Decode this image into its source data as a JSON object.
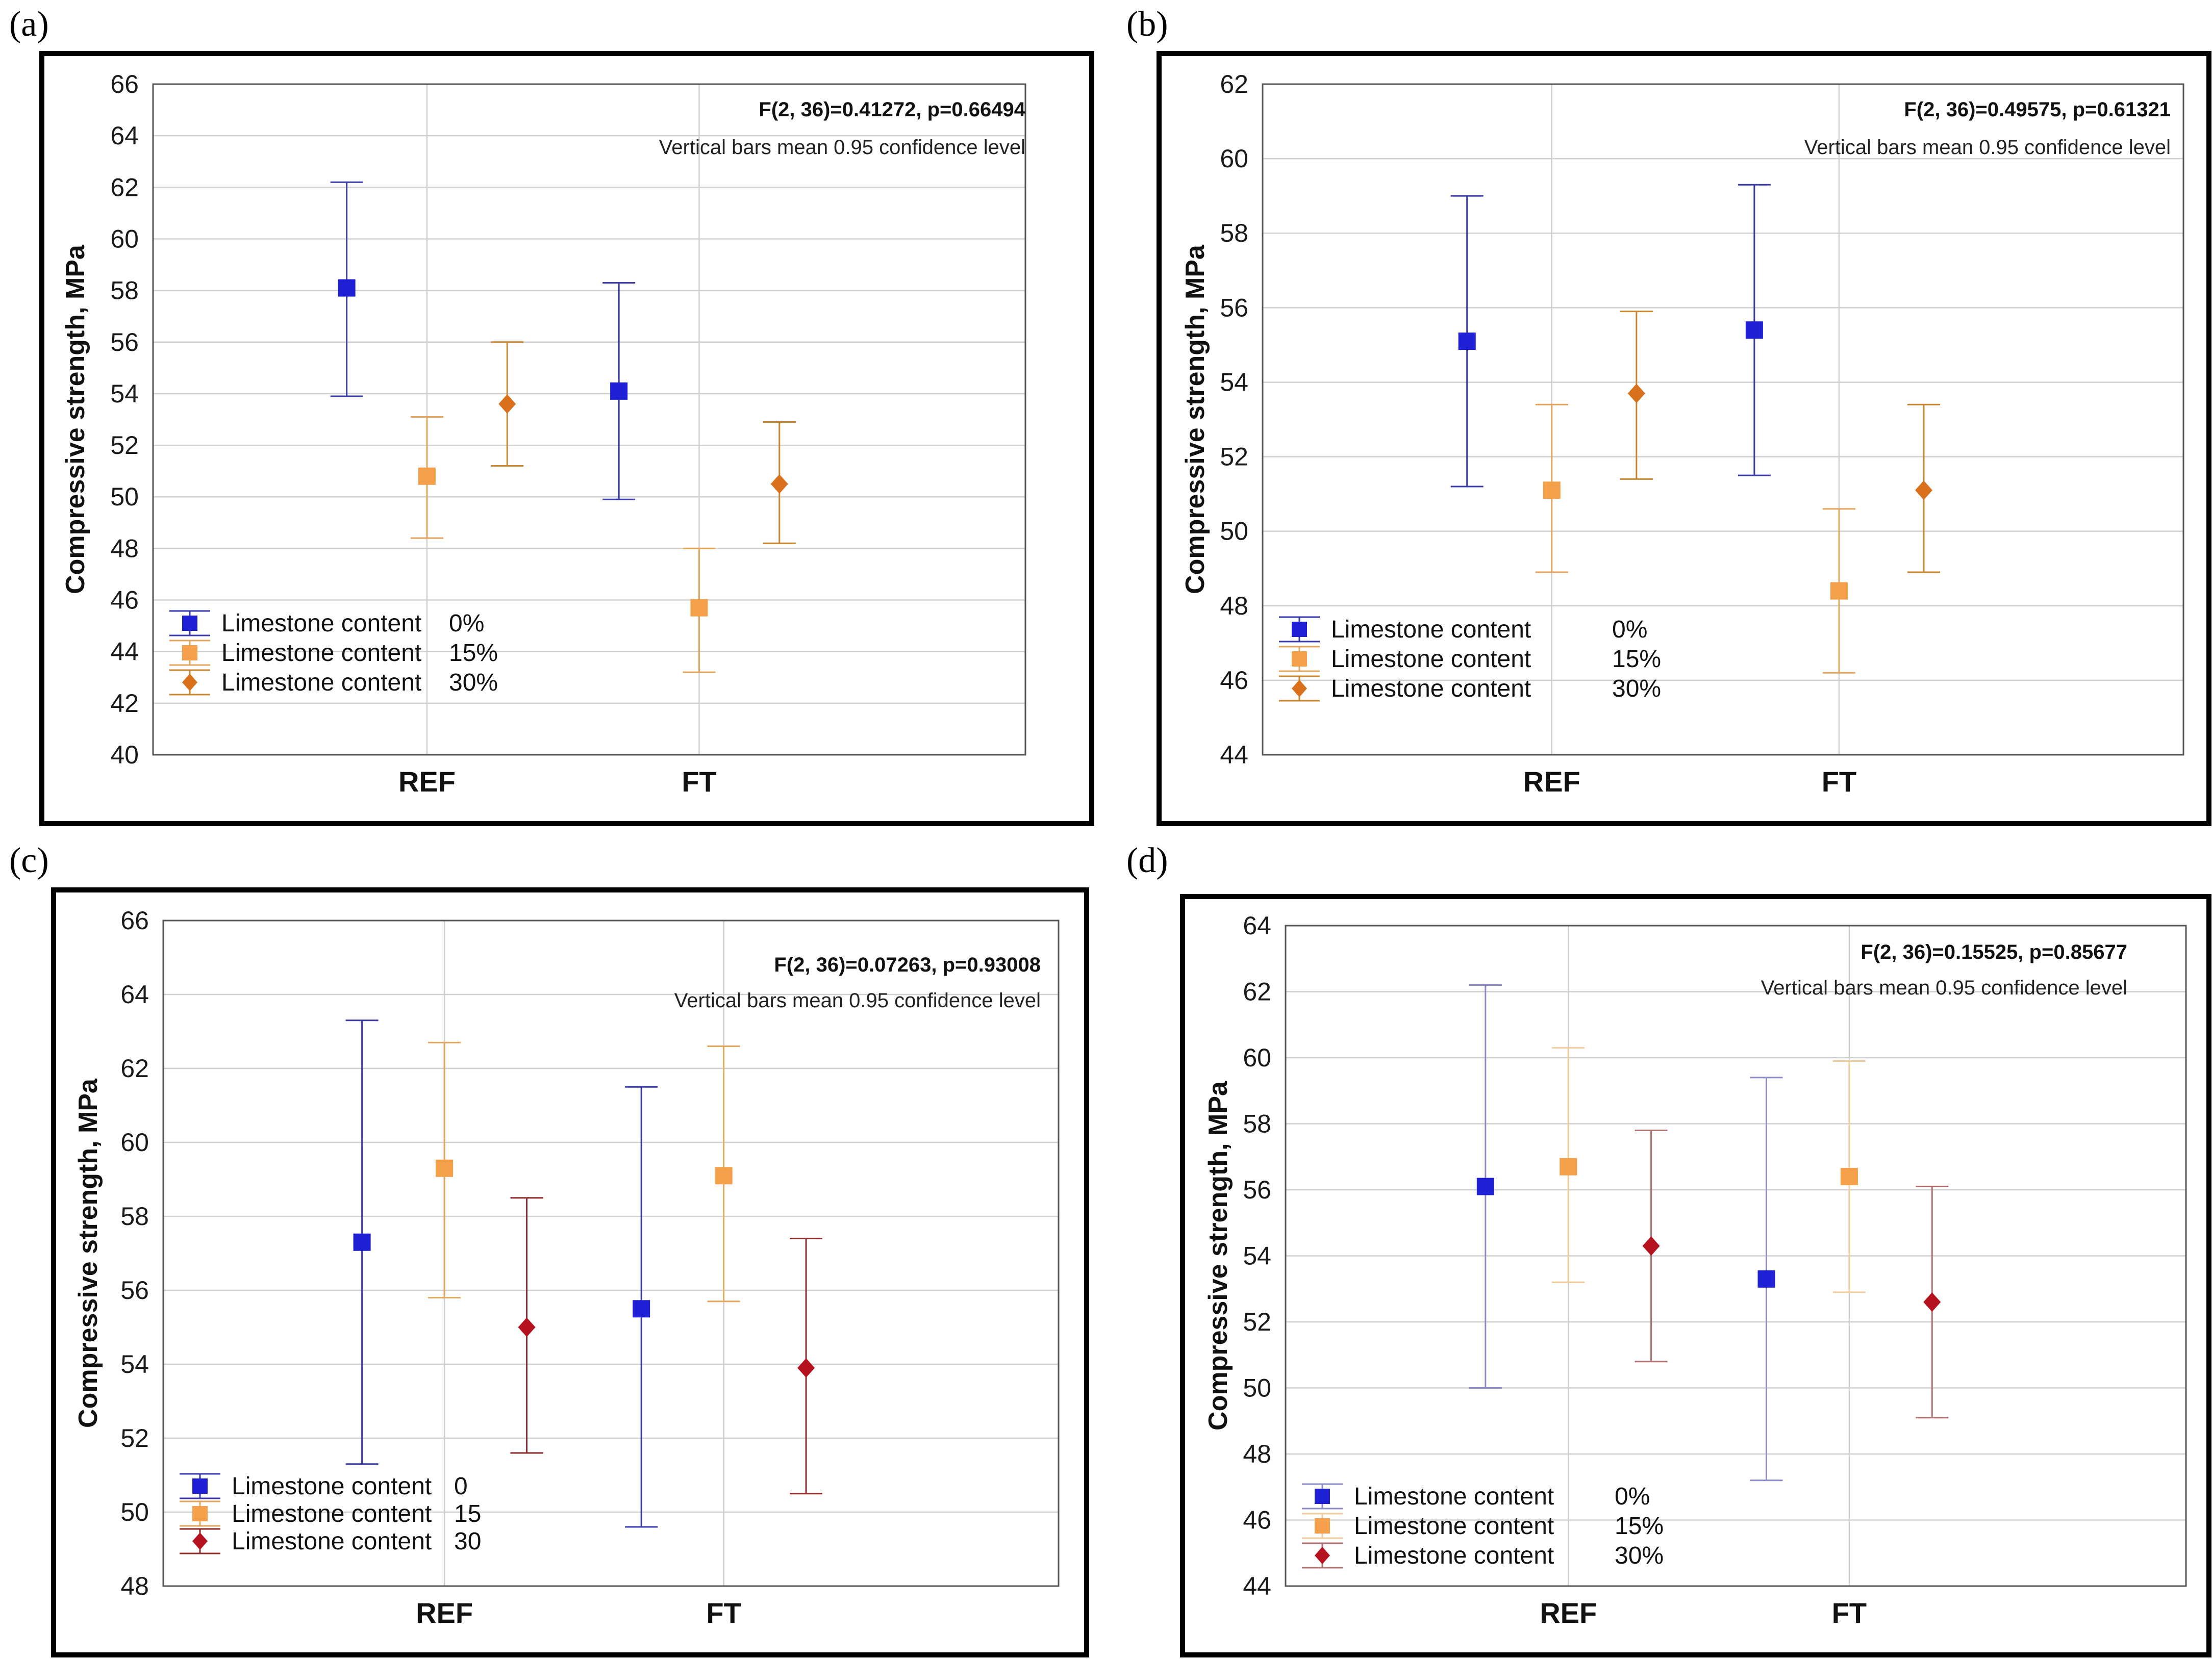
{
  "chart_data": [
    {
      "panel": "a",
      "type": "errorbar",
      "ylabel": "Compressive strength, MPa",
      "categories": [
        "REF",
        "FT"
      ],
      "ylim": [
        40,
        66
      ],
      "yticks": [
        40,
        42,
        44,
        46,
        48,
        50,
        52,
        54,
        56,
        58,
        60,
        62,
        64,
        66
      ],
      "annotation_stat": "F(2, 36)=0.41272, p=0.66494",
      "annotation_note": "Vertical bars mean 0.95 confidence level",
      "series": [
        {
          "name": "Limestone content",
          "level": "0%",
          "color": "#1f1fd6",
          "bar_color": "#3a3aa8",
          "marker": "square",
          "means": [
            58.1,
            54.1
          ],
          "lower": [
            53.9,
            49.9
          ],
          "upper": [
            62.2,
            58.3
          ]
        },
        {
          "name": "Limestone content",
          "level": "15%",
          "color": "#f4a04a",
          "bar_color": "#e3a55e",
          "marker": "square",
          "means": [
            50.8,
            45.7
          ],
          "lower": [
            48.4,
            43.2
          ],
          "upper": [
            53.1,
            48.0
          ]
        },
        {
          "name": "Limestone content",
          "level": "30%",
          "color": "#d9701c",
          "bar_color": "#c98530",
          "marker": "diamond",
          "means": [
            53.6,
            50.5
          ],
          "lower": [
            51.2,
            48.2
          ],
          "upper": [
            56.0,
            52.9
          ]
        }
      ]
    },
    {
      "panel": "b",
      "type": "errorbar",
      "ylabel": "Compressive strength, MPa",
      "categories": [
        "REF",
        "FT"
      ],
      "ylim": [
        44,
        62
      ],
      "yticks": [
        44,
        46,
        48,
        50,
        52,
        54,
        56,
        58,
        60,
        62
      ],
      "annotation_stat": "F(2, 36)=0.49575, p=0.61321",
      "annotation_note": "Vertical bars mean 0.95 confidence level",
      "series": [
        {
          "name": "Limestone content",
          "level": "0%",
          "color": "#1f1fd6",
          "bar_color": "#3a3aa8",
          "marker": "square",
          "means": [
            55.1,
            55.4
          ],
          "lower": [
            51.2,
            51.5
          ],
          "upper": [
            59.0,
            59.3
          ]
        },
        {
          "name": "Limestone content",
          "level": "15%",
          "color": "#f4a04a",
          "bar_color": "#e3a55e",
          "marker": "square",
          "means": [
            51.1,
            48.4
          ],
          "lower": [
            48.9,
            46.2
          ],
          "upper": [
            53.4,
            50.6
          ]
        },
        {
          "name": "Limestone content",
          "level": "30%",
          "color": "#d9701c",
          "bar_color": "#c98530",
          "marker": "diamond",
          "means": [
            53.7,
            51.1
          ],
          "lower": [
            51.4,
            48.9
          ],
          "upper": [
            55.9,
            53.4
          ]
        }
      ]
    },
    {
      "panel": "c",
      "type": "errorbar",
      "ylabel": "Compressive strength, MPa",
      "categories": [
        "REF",
        "FT"
      ],
      "ylim": [
        48,
        66
      ],
      "yticks": [
        48,
        50,
        52,
        54,
        56,
        58,
        60,
        62,
        64,
        66
      ],
      "annotation_stat": "F(2, 36)=0.07263, p=0.93008",
      "annotation_note": "Vertical bars mean 0.95 confidence level",
      "series": [
        {
          "name": "Limestone content",
          "level": "0",
          "color": "#1f1fd6",
          "bar_color": "#3a3aa8",
          "marker": "square",
          "means": [
            57.3,
            55.5
          ],
          "lower": [
            51.3,
            49.6
          ],
          "upper": [
            63.3,
            61.5
          ]
        },
        {
          "name": "Limestone content",
          "level": "15",
          "color": "#f4a04a",
          "bar_color": "#e3a55e",
          "marker": "square",
          "means": [
            59.3,
            59.1
          ],
          "lower": [
            55.8,
            55.7
          ],
          "upper": [
            62.7,
            62.6
          ]
        },
        {
          "name": "Limestone content",
          "level": "30",
          "color": "#b3121e",
          "bar_color": "#8c2a2a",
          "marker": "diamond",
          "means": [
            55.0,
            53.9
          ],
          "lower": [
            51.6,
            50.5
          ],
          "upper": [
            58.5,
            57.4
          ]
        }
      ]
    },
    {
      "panel": "d",
      "type": "errorbar",
      "ylabel": "Compressive strength, MPa",
      "categories": [
        "REF",
        "FT"
      ],
      "ylim": [
        44,
        64
      ],
      "yticks": [
        44,
        46,
        48,
        50,
        52,
        54,
        56,
        58,
        60,
        62,
        64
      ],
      "annotation_stat": "F(2, 36)=0.15525, p=0.85677",
      "annotation_note": "Vertical bars mean 0.95 confidence level",
      "series": [
        {
          "name": "Limestone content",
          "level": "0%",
          "color": "#1f1fd6",
          "bar_color": "#8c8cc9",
          "marker": "square",
          "means": [
            56.1,
            53.3
          ],
          "lower": [
            50.0,
            47.2
          ],
          "upper": [
            62.2,
            59.4
          ]
        },
        {
          "name": "Limestone content",
          "level": "15%",
          "color": "#f4a04a",
          "bar_color": "#efcc9c",
          "marker": "square",
          "means": [
            56.7,
            56.4
          ],
          "lower": [
            53.2,
            52.9
          ],
          "upper": [
            60.3,
            59.9
          ]
        },
        {
          "name": "Limestone content",
          "level": "30%",
          "color": "#b3121e",
          "bar_color": "#b07070",
          "marker": "diamond",
          "means": [
            54.3,
            52.6
          ],
          "lower": [
            50.8,
            49.1
          ],
          "upper": [
            57.8,
            56.1
          ]
        }
      ]
    }
  ],
  "panel_labels": [
    "(a)",
    "(b)",
    "(c)",
    "(d)"
  ]
}
